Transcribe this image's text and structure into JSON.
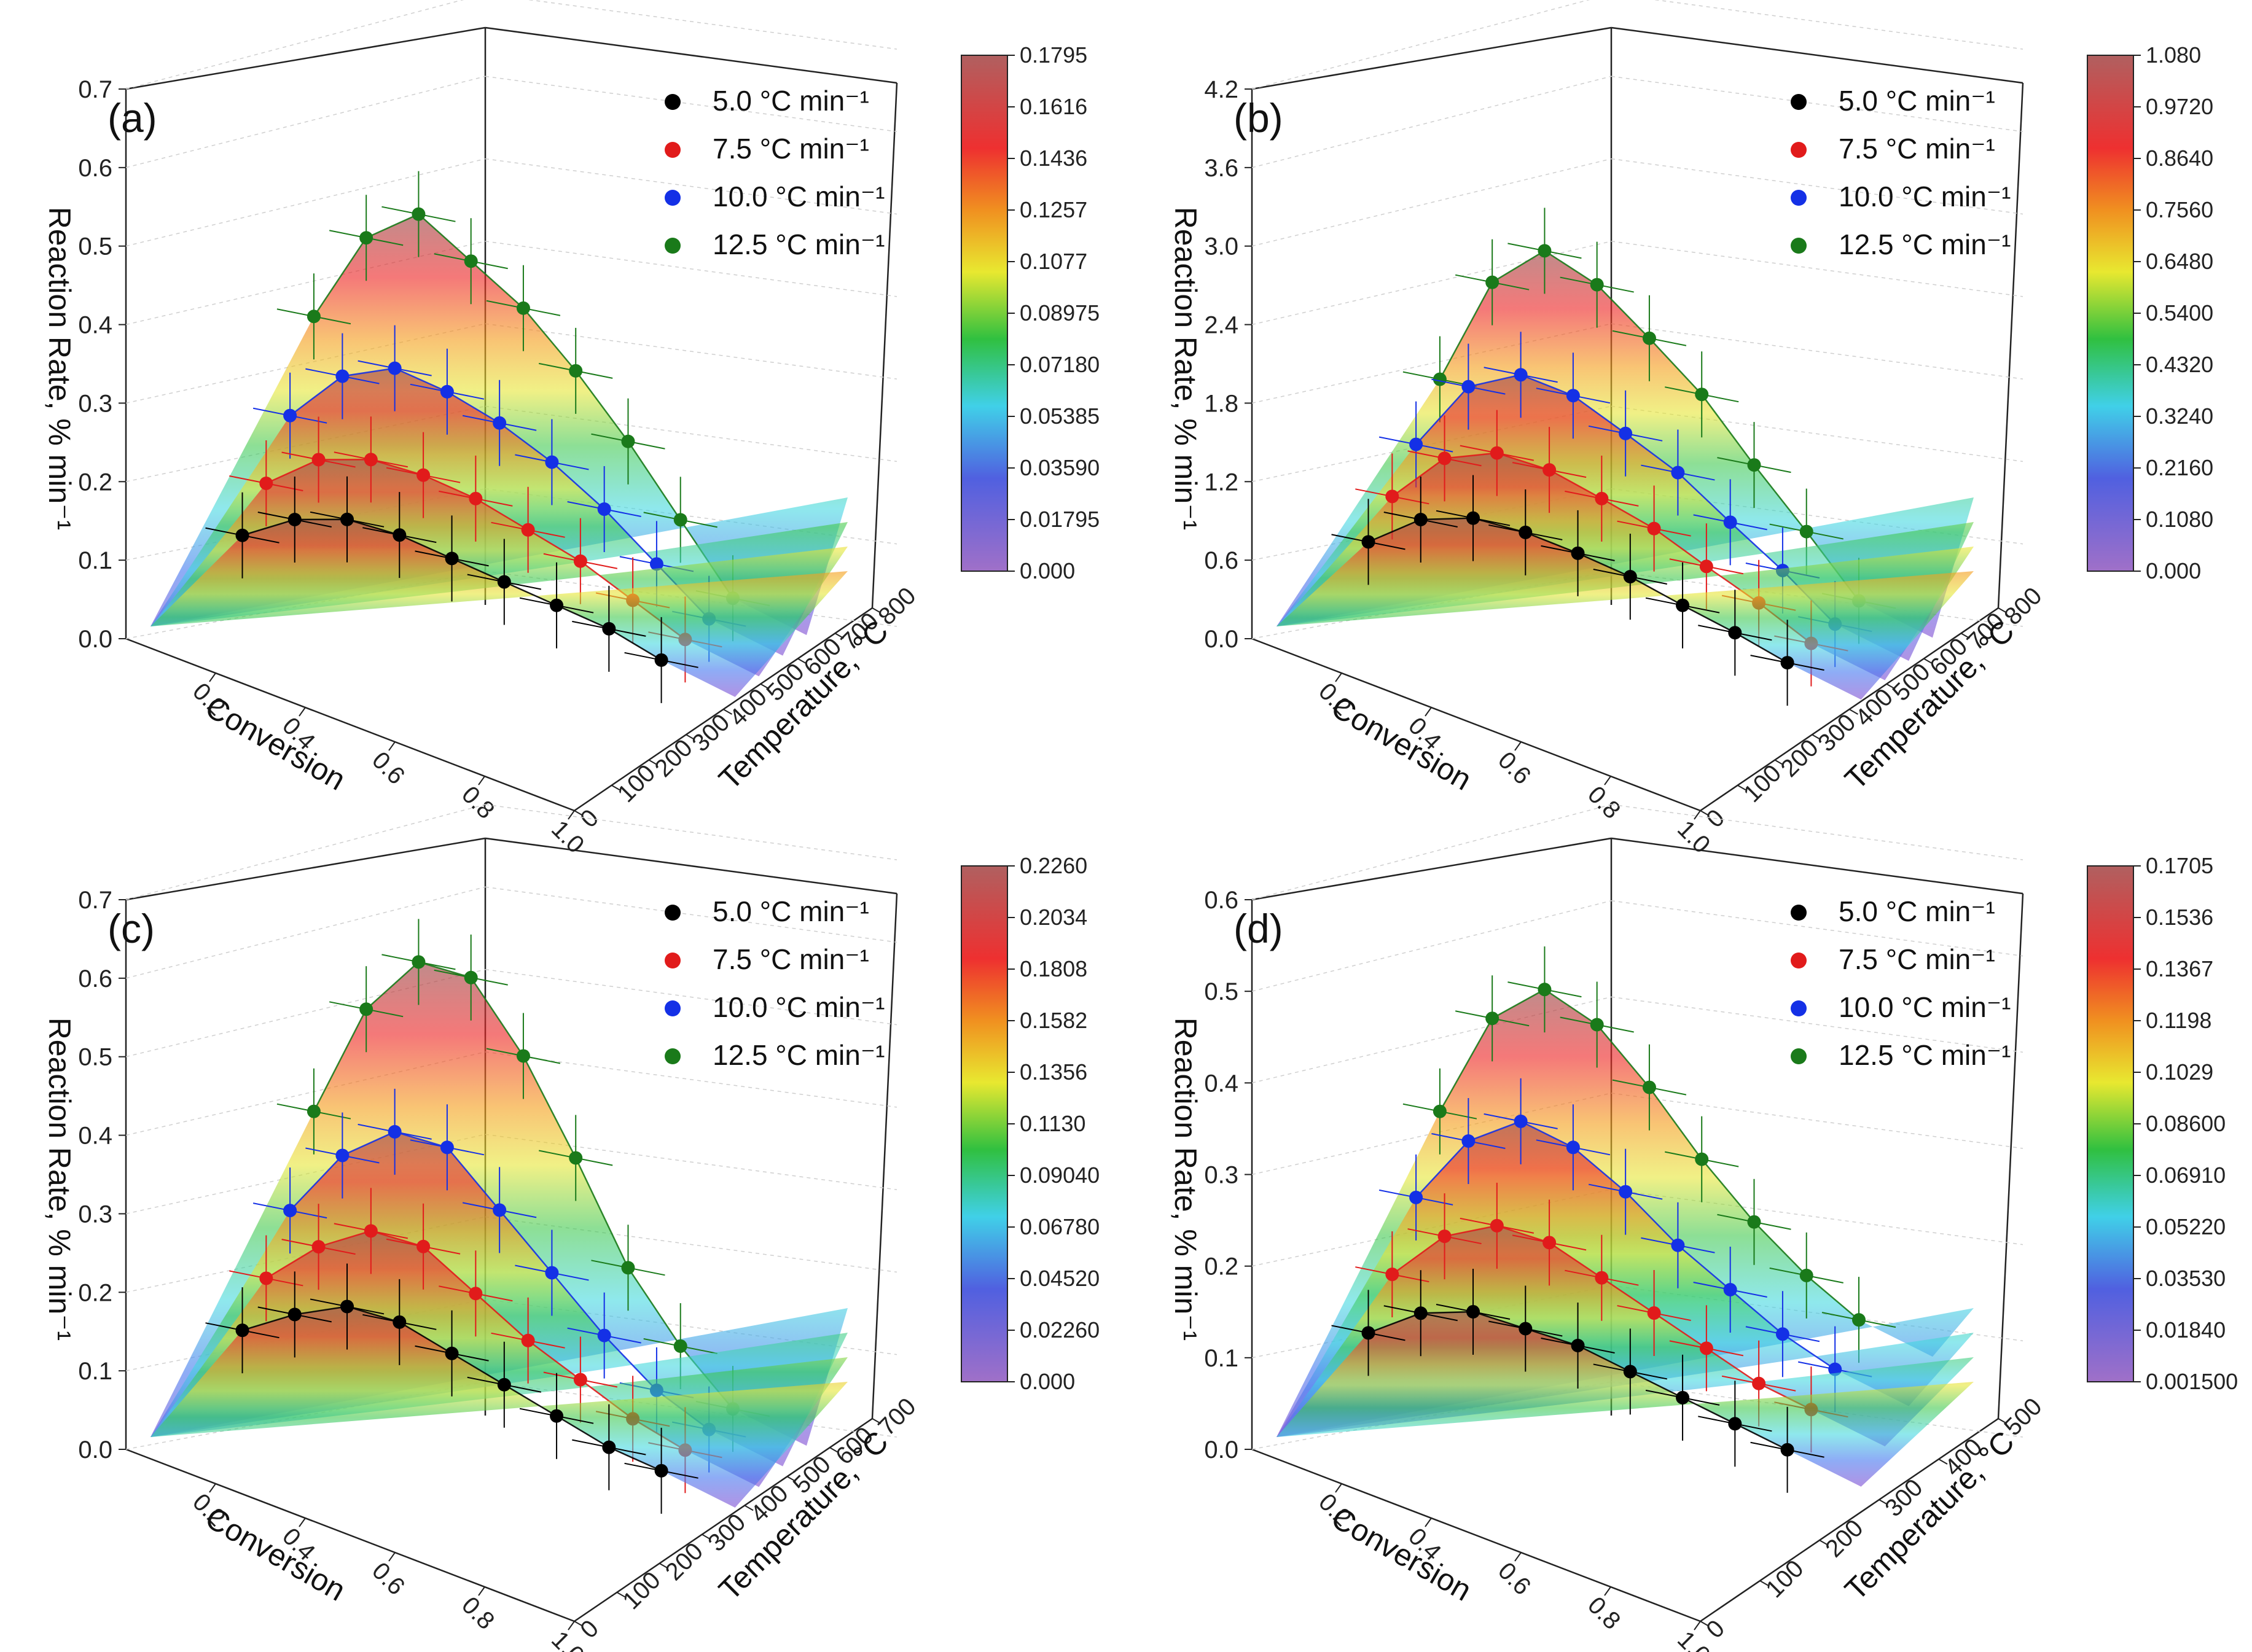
{
  "figure": {
    "legend_entries": [
      "5.0 °C min⁻¹",
      "7.5 °C min⁻¹",
      "10.0 °C min⁻¹",
      "12.5 °C min⁻¹"
    ],
    "series_colors": [
      "#000000",
      "#e11b1b",
      "#1430e6",
      "#1a7a1a"
    ],
    "xlabel": "Conversion",
    "ylabel": "Reaction Rate, % min⁻¹",
    "zlabel": "Temperature, °C"
  },
  "chart_data": [
    {
      "type": "scatter",
      "panel_label": "(a)",
      "title": "",
      "xlabel": "Conversion",
      "ylabel": "Reaction Rate, % min⁻¹",
      "zlabel": "Temperature, °C",
      "x_ticks": [
        "0.2",
        "0.4",
        "0.6",
        "0.8",
        "1.0"
      ],
      "y_ticks": [
        "0.0",
        "0.1",
        "0.2",
        "0.3",
        "0.4",
        "0.5",
        "0.6",
        "0.7"
      ],
      "z_ticks": [
        "0",
        "100",
        "200",
        "300",
        "400",
        "500",
        "600",
        "700",
        "800"
      ],
      "ylim": [
        0,
        0.7
      ],
      "colorbar_ticks": [
        "0.1795",
        "0.1616",
        "0.1436",
        "0.1257",
        "0.1077",
        "0.08975",
        "0.07180",
        "0.05385",
        "0.03590",
        "0.01795",
        "0.000"
      ],
      "x": [
        0.1,
        0.2,
        0.3,
        0.4,
        0.5,
        0.6,
        0.7,
        0.8,
        0.9
      ],
      "series": [
        {
          "name": "5.0 °C min⁻¹",
          "values": [
            0.1,
            0.13,
            0.14,
            0.13,
            0.11,
            0.09,
            0.07,
            0.05,
            0.02
          ]
        },
        {
          "name": "7.5 °C min⁻¹",
          "values": [
            0.15,
            0.19,
            0.2,
            0.19,
            0.17,
            0.14,
            0.11,
            0.07,
            0.03
          ]
        },
        {
          "name": "10.0 °C min⁻¹",
          "values": [
            0.22,
            0.28,
            0.3,
            0.28,
            0.25,
            0.21,
            0.16,
            0.1,
            0.04
          ]
        },
        {
          "name": "12.5 °C min⁻¹",
          "values": [
            0.33,
            0.44,
            0.48,
            0.43,
            0.38,
            0.31,
            0.23,
            0.14,
            0.05
          ]
        }
      ]
    },
    {
      "type": "scatter",
      "panel_label": "(b)",
      "title": "",
      "xlabel": "Conversion",
      "ylabel": "Reaction Rate, % min⁻¹",
      "zlabel": "Temperature, °C",
      "x_ticks": [
        "0.2",
        "0.4",
        "0.6",
        "0.8",
        "1.0"
      ],
      "y_ticks": [
        "0.0",
        "0.6",
        "1.2",
        "1.8",
        "2.4",
        "3.0",
        "3.6",
        "4.2"
      ],
      "z_ticks": [
        "0",
        "100",
        "200",
        "300",
        "400",
        "500",
        "600",
        "700",
        "800"
      ],
      "ylim": [
        0,
        4.2
      ],
      "colorbar_ticks": [
        "1.080",
        "0.9720",
        "0.8640",
        "0.7560",
        "0.6480",
        "0.5400",
        "0.4320",
        "0.3240",
        "0.2160",
        "0.1080",
        "0.000"
      ],
      "x": [
        0.1,
        0.2,
        0.3,
        0.4,
        0.5,
        0.6,
        0.7,
        0.8,
        0.9
      ],
      "series": [
        {
          "name": "5.0 °C min⁻¹",
          "values": [
            0.55,
            0.78,
            0.85,
            0.8,
            0.7,
            0.58,
            0.42,
            0.27,
            0.1
          ]
        },
        {
          "name": "7.5 °C min⁻¹",
          "values": [
            0.8,
            1.15,
            1.25,
            1.18,
            1.02,
            0.85,
            0.62,
            0.4,
            0.15
          ]
        },
        {
          "name": "10.0 °C min⁻¹",
          "values": [
            1.1,
            1.6,
            1.75,
            1.65,
            1.42,
            1.18,
            0.86,
            0.55,
            0.2
          ]
        },
        {
          "name": "12.5 °C min⁻¹",
          "values": [
            1.5,
            2.3,
            2.6,
            2.4,
            2.05,
            1.68,
            1.2,
            0.75,
            0.28
          ]
        }
      ]
    },
    {
      "type": "scatter",
      "panel_label": "(c)",
      "title": "",
      "xlabel": "Conversion",
      "ylabel": "Reaction Rate, % min⁻¹",
      "zlabel": "Temperature, °C",
      "x_ticks": [
        "0.2",
        "0.4",
        "0.6",
        "0.8",
        "1.0"
      ],
      "y_ticks": [
        "0.0",
        "0.1",
        "0.2",
        "0.3",
        "0.4",
        "0.5",
        "0.6",
        "0.7"
      ],
      "z_ticks": [
        "0",
        "100",
        "200",
        "300",
        "400",
        "500",
        "600",
        "700"
      ],
      "ylim": [
        0,
        0.7
      ],
      "colorbar_ticks": [
        "0.2260",
        "0.2034",
        "0.1808",
        "0.1582",
        "0.1356",
        "0.1130",
        "0.09040",
        "0.06780",
        "0.04520",
        "0.02260",
        "0.000"
      ],
      "x": [
        0.1,
        0.2,
        0.3,
        0.4,
        0.5,
        0.6,
        0.7,
        0.8,
        0.9
      ],
      "series": [
        {
          "name": "5.0 °C min⁻¹",
          "values": [
            0.12,
            0.15,
            0.17,
            0.16,
            0.13,
            0.1,
            0.07,
            0.04,
            0.02
          ]
        },
        {
          "name": "7.5 °C min⁻¹",
          "values": [
            0.17,
            0.22,
            0.25,
            0.24,
            0.19,
            0.14,
            0.1,
            0.06,
            0.03
          ]
        },
        {
          "name": "10.0 °C min⁻¹",
          "values": [
            0.24,
            0.32,
            0.36,
            0.35,
            0.28,
            0.21,
            0.14,
            0.08,
            0.04
          ]
        },
        {
          "name": "12.5 °C min⁻¹",
          "values": [
            0.35,
            0.49,
            0.56,
            0.55,
            0.46,
            0.34,
            0.21,
            0.12,
            0.05
          ]
        }
      ]
    },
    {
      "type": "scatter",
      "panel_label": "(d)",
      "title": "",
      "xlabel": "Conversion",
      "ylabel": "Reaction Rate, % min⁻¹",
      "zlabel": "Temperature, °C",
      "x_ticks": [
        "0.2",
        "0.4",
        "0.6",
        "0.8",
        "1.0"
      ],
      "y_ticks": [
        "0.0",
        "0.1",
        "0.2",
        "0.3",
        "0.4",
        "0.5",
        "0.6"
      ],
      "z_ticks": [
        "0",
        "100",
        "200",
        "300",
        "400",
        "500"
      ],
      "ylim": [
        0,
        0.6
      ],
      "colorbar_ticks": [
        "0.1705",
        "0.1536",
        "0.1367",
        "0.1198",
        "0.1029",
        "0.08600",
        "0.06910",
        "0.05220",
        "0.03530",
        "0.01840",
        "0.001500"
      ],
      "x": [
        0.1,
        0.2,
        0.3,
        0.4,
        0.5,
        0.6,
        0.7,
        0.8,
        0.9
      ],
      "series": [
        {
          "name": "5.0 °C min⁻¹",
          "values": [
            0.1,
            0.13,
            0.14,
            0.13,
            0.12,
            0.1,
            0.08,
            0.06,
            0.04
          ]
        },
        {
          "name": "7.5 °C min⁻¹",
          "values": [
            0.15,
            0.2,
            0.22,
            0.21,
            0.18,
            0.15,
            0.12,
            0.09,
            0.07
          ]
        },
        {
          "name": "10.0 °C min⁻¹",
          "values": [
            0.22,
            0.29,
            0.32,
            0.3,
            0.26,
            0.21,
            0.17,
            0.13,
            0.1
          ]
        },
        {
          "name": "12.5 °C min⁻¹",
          "values": [
            0.3,
            0.41,
            0.45,
            0.42,
            0.36,
            0.29,
            0.23,
            0.18,
            0.14
          ]
        }
      ]
    }
  ]
}
